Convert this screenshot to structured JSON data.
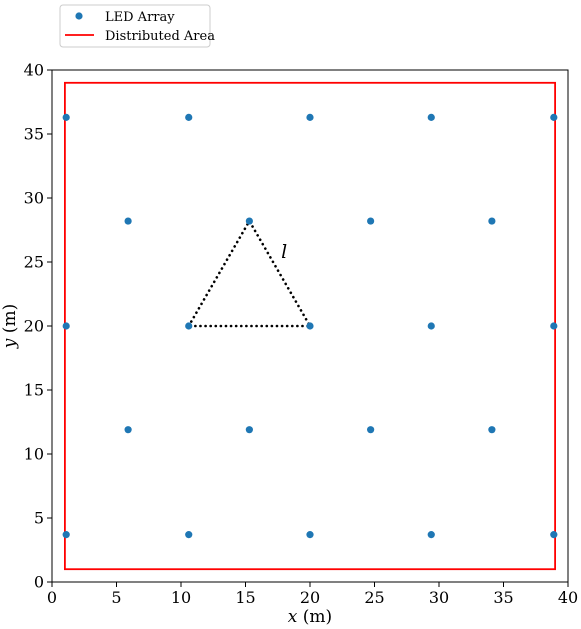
{
  "chart_data": {
    "type": "scatter",
    "xlim": [
      0,
      40
    ],
    "ylim": [
      0,
      40
    ],
    "xticks": [
      0,
      5,
      10,
      15,
      20,
      25,
      30,
      35,
      40
    ],
    "yticks": [
      0,
      5,
      10,
      15,
      20,
      25,
      30,
      35,
      40
    ],
    "xlabel_var": "x",
    "xlabel_unit": "(m)",
    "ylabel_var": "y",
    "ylabel_unit": "(m)",
    "legend_position": "top-left, outside axes",
    "grid": false,
    "series": [
      {
        "name": "LED Array",
        "kind": "scatter",
        "color": "#1f77b4",
        "points": [
          [
            1.1,
            36.3
          ],
          [
            10.6,
            36.3
          ],
          [
            20.0,
            36.3
          ],
          [
            29.4,
            36.3
          ],
          [
            38.9,
            36.3
          ],
          [
            5.9,
            28.2
          ],
          [
            15.3,
            28.2
          ],
          [
            24.7,
            28.2
          ],
          [
            34.1,
            28.2
          ],
          [
            1.1,
            20.0
          ],
          [
            10.6,
            20.0
          ],
          [
            20.0,
            20.0
          ],
          [
            29.4,
            20.0
          ],
          [
            38.9,
            20.0
          ],
          [
            5.9,
            11.9
          ],
          [
            15.3,
            11.9
          ],
          [
            24.7,
            11.9
          ],
          [
            34.1,
            11.9
          ],
          [
            1.1,
            3.7
          ],
          [
            10.6,
            3.7
          ],
          [
            20.0,
            3.7
          ],
          [
            29.4,
            3.7
          ],
          [
            38.9,
            3.7
          ]
        ]
      },
      {
        "name": "Distributed Area",
        "kind": "rectangle",
        "color": "#ff0000",
        "x_range": [
          1.0,
          39.0
        ],
        "y_range": [
          1.0,
          39.0
        ]
      }
    ],
    "triangle": {
      "style": "dotted",
      "color": "#000000",
      "vertices": [
        [
          10.6,
          20.0
        ],
        [
          15.3,
          28.2
        ],
        [
          20.0,
          20.0
        ]
      ]
    },
    "annotation": {
      "text": "l",
      "x": 18.0,
      "y": 25.3
    }
  }
}
